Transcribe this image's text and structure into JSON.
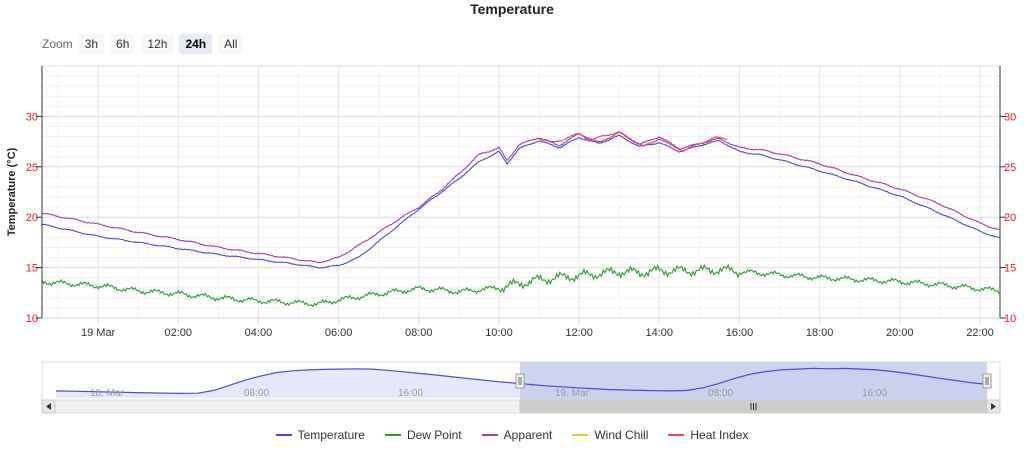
{
  "title": "Temperature",
  "zoom": {
    "label": "Zoom",
    "buttons": [
      "3h",
      "6h",
      "12h",
      "24h",
      "All"
    ],
    "active": "24h"
  },
  "chart_data": {
    "type": "line",
    "title": "Temperature",
    "ylabel": "Temperature (°C)",
    "ylim": [
      10,
      35
    ],
    "yticks": [
      10,
      15,
      20,
      25,
      30
    ],
    "xlim": [
      -1.4,
      22.5
    ],
    "xunit": "hours since 00:00 19 Mar",
    "xtick_labels": [
      "19 Mar",
      "02:00",
      "04:00",
      "06:00",
      "08:00",
      "10:00",
      "12:00",
      "14:00",
      "16:00",
      "18:00",
      "20:00",
      "22:00"
    ],
    "grid": true,
    "legend_position": "bottom",
    "series": [
      {
        "name": "Temperature",
        "color": "#4b4bd6",
        "points": [
          [
            -1.4,
            19.3
          ],
          [
            0,
            18.1
          ],
          [
            1,
            17.5
          ],
          [
            2,
            16.9
          ],
          [
            3,
            16.3
          ],
          [
            4,
            15.8
          ],
          [
            5,
            15.3
          ],
          [
            5.5,
            15.0
          ],
          [
            6,
            15.2
          ],
          [
            6.5,
            16.0
          ],
          [
            7,
            17.6
          ],
          [
            7.5,
            19.2
          ],
          [
            8,
            20.8
          ],
          [
            8.5,
            22.3
          ],
          [
            9,
            23.8
          ],
          [
            9.5,
            25.5
          ],
          [
            10,
            26.5
          ],
          [
            10.2,
            25.3
          ],
          [
            10.5,
            26.8
          ],
          [
            11,
            27.6
          ],
          [
            11.5,
            26.9
          ],
          [
            12,
            27.9
          ],
          [
            12.5,
            27.3
          ],
          [
            13,
            28.1
          ],
          [
            13.5,
            27.0
          ],
          [
            14,
            27.4
          ],
          [
            14.5,
            26.5
          ],
          [
            15,
            27.1
          ],
          [
            15.5,
            27.6
          ],
          [
            16,
            26.5
          ],
          [
            16.5,
            26.2
          ],
          [
            17,
            25.7
          ],
          [
            18,
            24.6
          ],
          [
            19,
            23.4
          ],
          [
            20,
            22.1
          ],
          [
            21,
            20.4
          ],
          [
            22,
            18.6
          ],
          [
            22.5,
            17.9
          ]
        ]
      },
      {
        "name": "Dew Point",
        "color": "#2f9a2f",
        "points": [
          [
            -1.4,
            13.6
          ],
          [
            0,
            13.2
          ],
          [
            1,
            12.7
          ],
          [
            2,
            12.4
          ],
          [
            3,
            12.0
          ],
          [
            4,
            11.7
          ],
          [
            5,
            11.5
          ],
          [
            5.5,
            11.4
          ],
          [
            6,
            11.8
          ],
          [
            7,
            12.4
          ],
          [
            8,
            12.9
          ],
          [
            8.5,
            12.8
          ],
          [
            9,
            12.6
          ],
          [
            9.5,
            12.8
          ],
          [
            10,
            13.0
          ],
          [
            10.5,
            13.4
          ],
          [
            11,
            13.8
          ],
          [
            11.5,
            14.0
          ],
          [
            12,
            14.2
          ],
          [
            12.5,
            14.4
          ],
          [
            13,
            14.6
          ],
          [
            13.5,
            14.5
          ],
          [
            14,
            14.7
          ],
          [
            14.5,
            14.7
          ],
          [
            15,
            14.7
          ],
          [
            15.5,
            14.8
          ],
          [
            16,
            14.6
          ],
          [
            17,
            14.3
          ],
          [
            18,
            14.0
          ],
          [
            19,
            13.8
          ],
          [
            20,
            13.6
          ],
          [
            21,
            13.3
          ],
          [
            22,
            12.9
          ],
          [
            22.5,
            12.7
          ]
        ]
      },
      {
        "name": "Apparent",
        "color": "#a040b0",
        "points": [
          [
            -1.4,
            20.4
          ],
          [
            0,
            19.3
          ],
          [
            1,
            18.5
          ],
          [
            2,
            17.8
          ],
          [
            3,
            17.0
          ],
          [
            4,
            16.4
          ],
          [
            5,
            15.8
          ],
          [
            5.5,
            15.5
          ],
          [
            6,
            16.0
          ],
          [
            6.5,
            17.2
          ],
          [
            7,
            18.5
          ],
          [
            7.5,
            19.8
          ],
          [
            8,
            21.0
          ],
          [
            8.5,
            22.5
          ],
          [
            9,
            24.3
          ],
          [
            9.5,
            26.2
          ],
          [
            10,
            26.9
          ],
          [
            10.2,
            25.6
          ],
          [
            10.5,
            27.2
          ],
          [
            11,
            27.9
          ],
          [
            11.5,
            27.1
          ],
          [
            12,
            28.3
          ],
          [
            12.5,
            27.4
          ],
          [
            13,
            28.4
          ],
          [
            13.5,
            27.2
          ],
          [
            14,
            28.0
          ],
          [
            14.5,
            26.8
          ],
          [
            15,
            27.3
          ],
          [
            15.5,
            27.8
          ],
          [
            16,
            26.9
          ],
          [
            16.5,
            26.7
          ],
          [
            17,
            26.3
          ],
          [
            18,
            25.3
          ],
          [
            19,
            24.0
          ],
          [
            20,
            22.8
          ],
          [
            21,
            21.3
          ],
          [
            22,
            19.4
          ],
          [
            22.5,
            18.7
          ]
        ]
      },
      {
        "name": "Wind Chill",
        "color": "#f3c142",
        "points": []
      },
      {
        "name": "Heat Index",
        "color": "#f0445b",
        "points": [
          [
            11.0,
            27.8
          ],
          [
            11.3,
            27.4
          ],
          [
            11.6,
            27.7
          ],
          [
            12.0,
            28.3
          ],
          [
            12.3,
            27.6
          ],
          [
            12.6,
            28.1
          ],
          [
            13.0,
            28.4
          ],
          [
            13.3,
            27.8
          ],
          [
            13.6,
            27.0
          ],
          [
            14.0,
            27.8
          ],
          [
            14.3,
            27.1
          ],
          [
            14.6,
            26.6
          ],
          [
            15.0,
            27.3
          ],
          [
            15.4,
            27.9
          ],
          [
            15.7,
            27.8
          ]
        ]
      }
    ]
  },
  "navigator": {
    "date_labels": [
      "18. Mar",
      "19. Mar"
    ],
    "time_labels": [
      "08:00",
      "16:00",
      "08:00",
      "16:00"
    ],
    "values": [
      14.2,
      14.0,
      13.8,
      13.6,
      13.4,
      13.2,
      13.0,
      12.8,
      12.7,
      12.8,
      14.5,
      17.5,
      20.5,
      23.0,
      25.0,
      26.0,
      26.5,
      26.8,
      27.0,
      27.2,
      27.0,
      26.3,
      25.4,
      24.5,
      23.6,
      22.6,
      21.6,
      20.6,
      19.6,
      18.8,
      18.0,
      17.2,
      16.6,
      16.0,
      15.5,
      15.0,
      14.7,
      14.5,
      14.3,
      14.2,
      14.5,
      16.0,
      18.5,
      21.5,
      24.0,
      25.6,
      26.6,
      27.0,
      27.5,
      27.2,
      27.4,
      27.0,
      26.5,
      25.6,
      24.4,
      23.0,
      21.6,
      20.3,
      19.0,
      18.0
    ]
  },
  "legend": [
    "Temperature",
    "Dew Point",
    "Apparent",
    "Wind Chill",
    "Heat Index"
  ]
}
